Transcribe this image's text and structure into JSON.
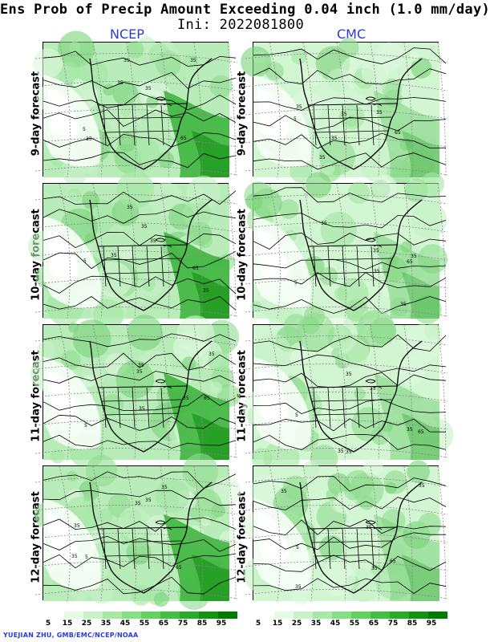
{
  "title": "Ens Prob of Precip Amount Exceeding 0.04 inch (1.0 mm/day)",
  "subtitle": "Ini: 2022081800",
  "models": [
    "NCEP",
    "CMC"
  ],
  "rows": [
    {
      "label": "9-day forecast"
    },
    {
      "label": "10-day forecast"
    },
    {
      "label": "11-day forecast"
    },
    {
      "label": "12-day forecast"
    }
  ],
  "contour_label": "35",
  "contour_label_low": "5",
  "contour_label_high": "65",
  "colorbar": {
    "ticks": [
      "5",
      "15",
      "25",
      "35",
      "45",
      "55",
      "65",
      "75",
      "85",
      "95"
    ],
    "colors": [
      "#ffffff",
      "#e6fbe6",
      "#c8f3c8",
      "#a6eaa6",
      "#85df85",
      "#63d063",
      "#43bf43",
      "#28ab28",
      "#129412",
      "#007a00"
    ]
  },
  "credit": "YUEJIAN ZHU, GMB/EMC/NCEP/NOAA"
}
